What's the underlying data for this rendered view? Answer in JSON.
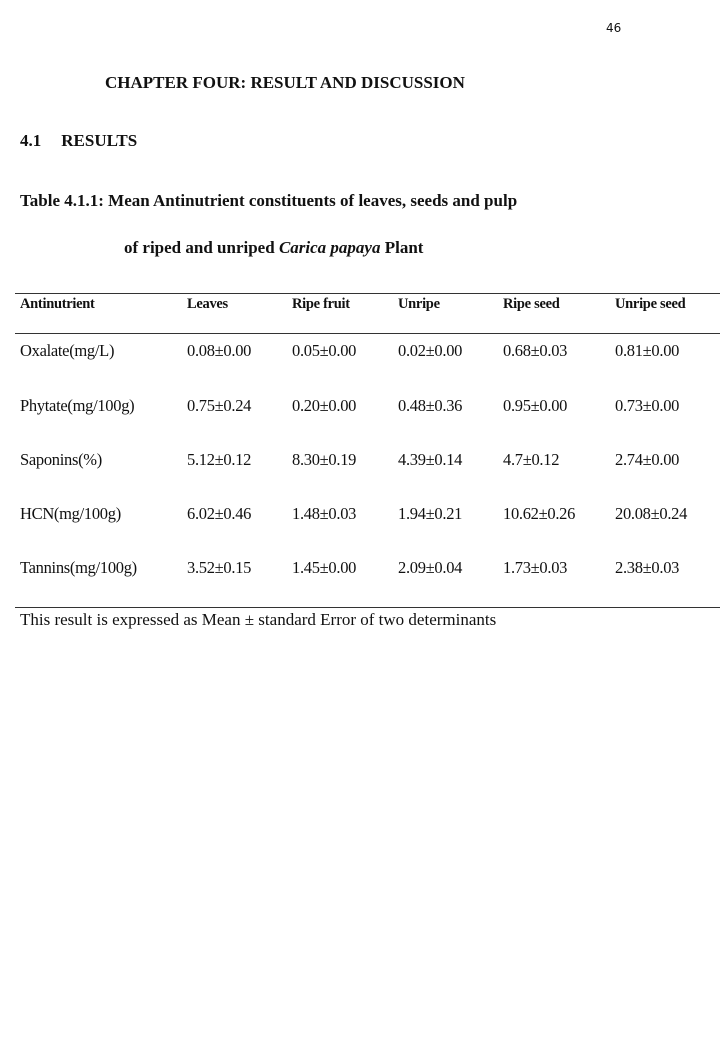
{
  "page_number": "46",
  "chapter_title": "CHAPTER FOUR: RESULT AND DISCUSSION",
  "section": {
    "number": "4.1",
    "title": "RESULTS"
  },
  "table": {
    "caption_line1": "Table 4.1.1: Mean Antinutrient constituents of leaves, seeds and pulp",
    "caption_line2_prefix": "of riped and unriped ",
    "caption_line2_italic": "Carica papaya",
    "caption_line2_suffix": " Plant",
    "headers": [
      "Antinutrient",
      "Leaves",
      "Ripe fruit",
      "Unripe",
      "Ripe seed",
      "Unripe seed"
    ],
    "rows": [
      [
        "Oxalate(mg/L)",
        "0.08±0.00",
        "0.05±0.00",
        "0.02±0.00",
        "0.68±0.03",
        "0.81±0.00"
      ],
      [
        "Phytate(mg/100g)",
        "0.75±0.24",
        "0.20±0.00",
        "0.48±0.36",
        "0.95±0.00",
        "0.73±0.00"
      ],
      [
        "Saponins(%)",
        "5.12±0.12",
        "8.30±0.19",
        "4.39±0.14",
        "4.7±0.12",
        "2.74±0.00"
      ],
      [
        "HCN(mg/100g)",
        "6.02±0.46",
        "1.48±0.03",
        "1.94±0.21",
        "10.62±0.26",
        "20.08±0.24"
      ],
      [
        "Tannins(mg/100g)",
        "3.52±0.15",
        "1.45±0.00",
        "2.09±0.04",
        "1.73±0.03",
        "2.38±0.03"
      ]
    ],
    "note": "This result is expressed as Mean ± standard Error of two determinants"
  }
}
